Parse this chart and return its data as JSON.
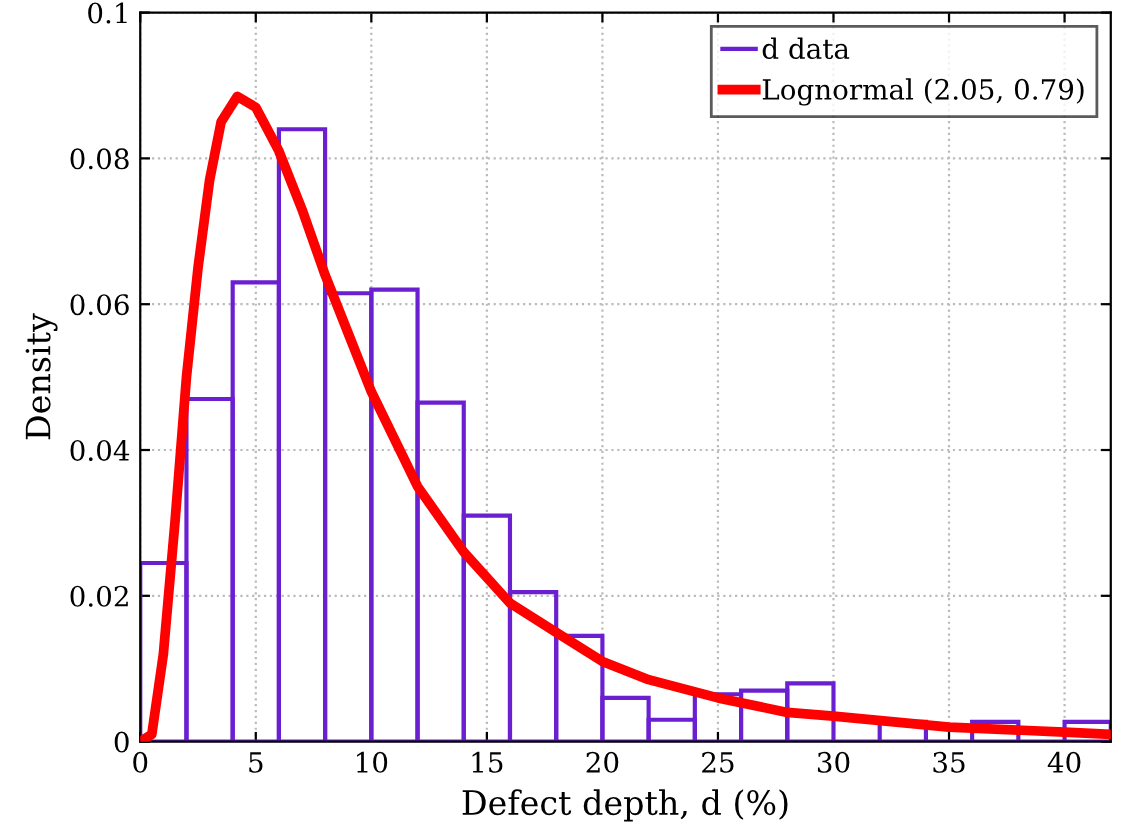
{
  "chart_data": {
    "type": "histogram",
    "xlabel": "Defect depth, d (%)",
    "ylabel": "Density",
    "bins": [
      0,
      2,
      4,
      6,
      8,
      10,
      12,
      14,
      16,
      18,
      20,
      22,
      24,
      26,
      28,
      30,
      32,
      34,
      36,
      38,
      40,
      42
    ],
    "series": [
      {
        "name": "d data",
        "color": "#6a1fd0",
        "values": [
          0.0245,
          0.047,
          0.063,
          0.084,
          0.0615,
          0.062,
          0.0465,
          0.031,
          0.0205,
          0.0145,
          0.006,
          0.003,
          0.0065,
          0.007,
          0.008,
          0,
          0.0027,
          0,
          0.0027,
          0,
          0.0027
        ]
      },
      {
        "name": "Lognormal (2.05, 0.79)",
        "type": "line",
        "color": "#ff0000",
        "x": [
          0,
          0.5,
          1,
          1.5,
          2,
          2.5,
          3,
          3.5,
          4.2,
          5,
          6,
          7,
          8,
          9,
          10,
          12,
          14,
          16,
          18,
          20,
          22,
          25,
          28,
          30,
          35,
          40,
          42
        ],
        "values": [
          0,
          0.001,
          0.012,
          0.03,
          0.05,
          0.065,
          0.077,
          0.085,
          0.0885,
          0.087,
          0.081,
          0.073,
          0.064,
          0.056,
          0.048,
          0.035,
          0.026,
          0.019,
          0.015,
          0.011,
          0.0085,
          0.006,
          0.004,
          0.0035,
          0.002,
          0.0013,
          0.001
        ]
      }
    ],
    "xlim": [
      0,
      42
    ],
    "ylim": [
      0,
      0.1
    ],
    "xticks": [
      0,
      5,
      10,
      15,
      20,
      25,
      30,
      35,
      40
    ],
    "yticks": [
      0,
      0.02,
      0.04,
      0.06,
      0.08,
      {
        "value": 0.1,
        "label": "0.1"
      }
    ],
    "grid": true,
    "legend": "top right"
  }
}
